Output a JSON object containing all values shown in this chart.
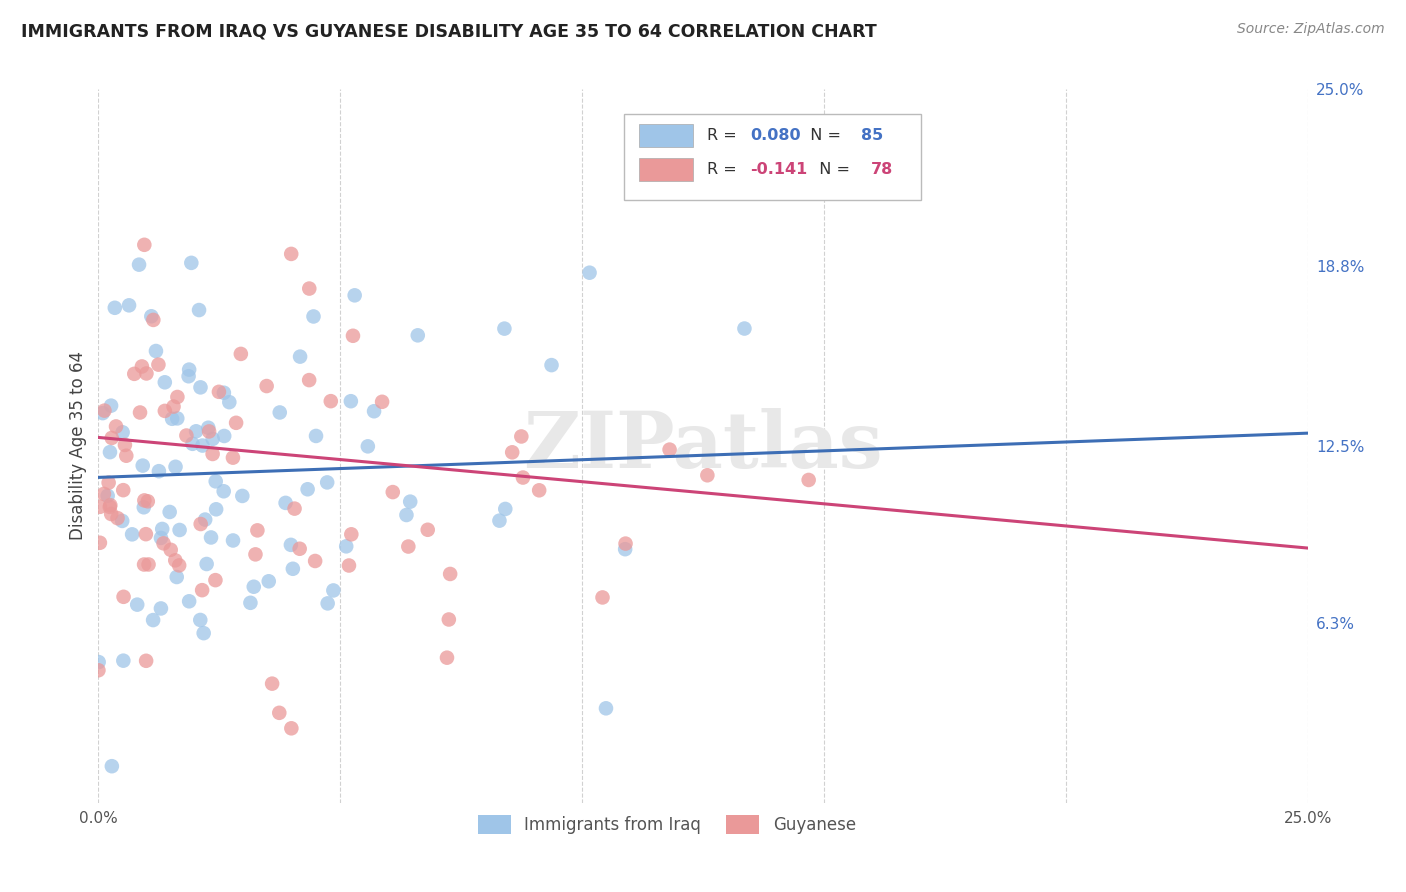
{
  "title": "IMMIGRANTS FROM IRAQ VS GUYANESE DISABILITY AGE 35 TO 64 CORRELATION CHART",
  "source": "Source: ZipAtlas.com",
  "ylabel": "Disability Age 35 to 64",
  "x_min": 0.0,
  "x_max": 0.25,
  "y_min": 0.0,
  "y_max": 0.25,
  "series1_color": "#9fc5e8",
  "series2_color": "#ea9999",
  "series1_line_color": "#3d6eb5",
  "series2_line_color": "#cc4477",
  "series1_R": 0.08,
  "series1_N": 85,
  "series2_R": -0.141,
  "series2_N": 78,
  "series1_intercept": 0.114,
  "series1_slope": 0.062,
  "series2_intercept": 0.128,
  "series2_slope": -0.155,
  "legend_label1": "Immigrants from Iraq",
  "legend_label2": "Guyanese",
  "background_color": "#ffffff",
  "grid_color": "#cccccc",
  "right_tick_color": "#4472c4",
  "watermark": "ZIPatlas",
  "watermark_color": "#e8e8e8",
  "legend_R_color1": "#4472c4",
  "legend_R_color2": "#cc4477",
  "legend_N_color1": "#4472c4",
  "legend_N_color2": "#cc4477"
}
